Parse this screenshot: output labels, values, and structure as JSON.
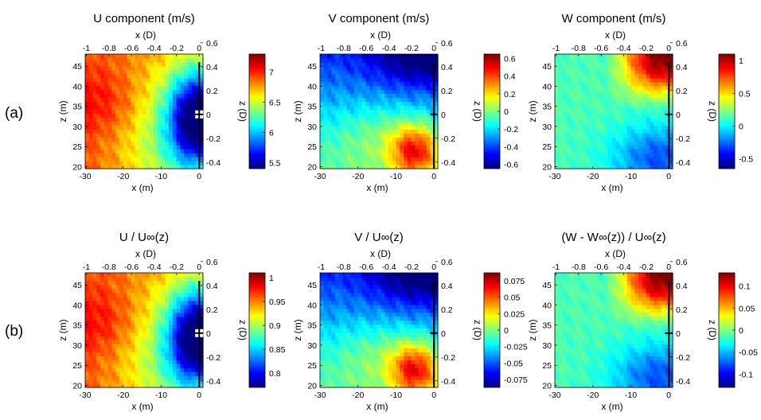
{
  "row_labels": [
    "(a)",
    "(b)"
  ],
  "chart_data": [
    {
      "type": "heatmap",
      "title": "U component (m/s)",
      "xlabel": "x (m)",
      "ylabel": "z (m)",
      "top_xlabel": "x (D)",
      "right_ylabel": "z (D)",
      "xlim": [
        -30,
        1
      ],
      "ylim": [
        19.5,
        48
      ],
      "xticks": [
        -30,
        -20,
        -10,
        0
      ],
      "yticks": [
        20,
        25,
        30,
        35,
        40,
        45
      ],
      "top_xticks": [
        "-1",
        "-0.8",
        "-0.6",
        "-0.4",
        "-0.2",
        "0"
      ],
      "right_yticks": [
        "-0.4",
        "-0.2",
        "0",
        "0.2",
        "0.4",
        "0.6"
      ],
      "colorbar": {
        "range": [
          5.4,
          7.3
        ],
        "ticks": [
          "5.5",
          "6",
          "6.5",
          "7"
        ],
        "tick_values": [
          5.5,
          6,
          6.5,
          7
        ]
      },
      "field": "U"
    },
    {
      "type": "heatmap",
      "title": "V component (m/s)",
      "xlabel": "x (m)",
      "ylabel": "z (m)",
      "top_xlabel": "x (D)",
      "right_ylabel": "z (D)",
      "xlim": [
        -30,
        1
      ],
      "ylim": [
        19.5,
        48
      ],
      "xticks": [
        -30,
        -20,
        -10,
        0
      ],
      "yticks": [
        20,
        25,
        30,
        35,
        40,
        45
      ],
      "top_xticks": [
        "-1",
        "-0.8",
        "-0.6",
        "-0.4",
        "-0.2",
        "0"
      ],
      "right_yticks": [
        "-0.4",
        "-0.2",
        "0",
        "0.2",
        "0.4",
        "0.6"
      ],
      "colorbar": {
        "range": [
          -0.65,
          0.65
        ],
        "ticks": [
          "-0.6",
          "-0.4",
          "-0.2",
          "0",
          "0.2",
          "0.4",
          "0.6"
        ],
        "tick_values": [
          -0.6,
          -0.4,
          -0.2,
          0,
          0.2,
          0.4,
          0.6
        ]
      },
      "field": "V"
    },
    {
      "type": "heatmap",
      "title": "W component (m/s)",
      "xlabel": "x (m)",
      "ylabel": "z (m)",
      "top_xlabel": "x (D)",
      "right_ylabel": "z (D)",
      "xlim": [
        -30,
        1
      ],
      "ylim": [
        19.5,
        48
      ],
      "xticks": [
        -30,
        -20,
        -10,
        0
      ],
      "yticks": [
        20,
        25,
        30,
        35,
        40,
        45
      ],
      "top_xticks": [
        "-1",
        "-0.8",
        "-0.6",
        "-0.4",
        "-0.2",
        "0"
      ],
      "right_yticks": [
        "-0.4",
        "-0.2",
        "0",
        "0.2",
        "0.4",
        "0.6"
      ],
      "colorbar": {
        "range": [
          -0.65,
          1.1
        ],
        "ticks": [
          "-0.5",
          "0",
          "0.5",
          "1"
        ],
        "tick_values": [
          -0.5,
          0,
          0.5,
          1
        ]
      },
      "field": "W"
    },
    {
      "type": "heatmap",
      "title": "U / U∞(z)",
      "xlabel": "x (m)",
      "ylabel": "z (m)",
      "top_xlabel": "x (D)",
      "right_ylabel": "z (D)",
      "xlim": [
        -30,
        1
      ],
      "ylim": [
        19.5,
        48
      ],
      "xticks": [
        -30,
        -20,
        -10,
        0
      ],
      "yticks": [
        20,
        25,
        30,
        35,
        40,
        45
      ],
      "top_xticks": [
        "-1",
        "-0.8",
        "-0.6",
        "-0.4",
        "-0.2",
        "0"
      ],
      "right_yticks": [
        "-0.4",
        "-0.2",
        "0",
        "0.2",
        "0.4",
        "0.6"
      ],
      "colorbar": {
        "range": [
          0.77,
          1.01
        ],
        "ticks": [
          "0.8",
          "0.85",
          "0.9",
          "0.95",
          "1"
        ],
        "tick_values": [
          0.8,
          0.85,
          0.9,
          0.95,
          1
        ]
      },
      "field": "U"
    },
    {
      "type": "heatmap",
      "title": "V / U∞(z)",
      "xlabel": "x (m)",
      "ylabel": "z (m)",
      "top_xlabel": "x (D)",
      "right_ylabel": "z (D)",
      "xlim": [
        -30,
        1
      ],
      "ylim": [
        19.5,
        48
      ],
      "xticks": [
        -30,
        -20,
        -10,
        0
      ],
      "yticks": [
        20,
        25,
        30,
        35,
        40,
        45
      ],
      "top_xticks": [
        "-1",
        "-0.8",
        "-0.6",
        "-0.4",
        "-0.2",
        "0"
      ],
      "right_yticks": [
        "-0.4",
        "-0.2",
        "0",
        "0.2",
        "0.4",
        "0.6"
      ],
      "colorbar": {
        "range": [
          -0.087,
          0.087
        ],
        "ticks": [
          "-0.075",
          "-0.05",
          "-0.025",
          "0",
          "0.025",
          "0.05",
          "0.075"
        ],
        "tick_values": [
          -0.075,
          -0.05,
          -0.025,
          0,
          0.025,
          0.05,
          0.075
        ]
      },
      "field": "V"
    },
    {
      "type": "heatmap",
      "title": "(W - W∞(z)) / U∞(z)",
      "xlabel": "x (m)",
      "ylabel": "z (m)",
      "top_xlabel": "x (D)",
      "right_ylabel": "z (D)",
      "xlim": [
        -30,
        1
      ],
      "ylim": [
        19.5,
        48
      ],
      "xticks": [
        -30,
        -20,
        -10,
        0
      ],
      "yticks": [
        20,
        25,
        30,
        35,
        40,
        45
      ],
      "top_xticks": [
        "-1",
        "-0.8",
        "-0.6",
        "-0.4",
        "-0.2",
        "0"
      ],
      "right_yticks": [
        "-0.4",
        "-0.2",
        "0",
        "0.2",
        "0.4",
        "0.6"
      ],
      "colorbar": {
        "range": [
          -0.13,
          0.13
        ],
        "ticks": [
          "-0.1",
          "-0.05",
          "0",
          "0.05",
          "0.1"
        ],
        "tick_values": [
          -0.1,
          -0.05,
          0,
          0.05,
          0.1
        ]
      },
      "field": "W"
    }
  ]
}
